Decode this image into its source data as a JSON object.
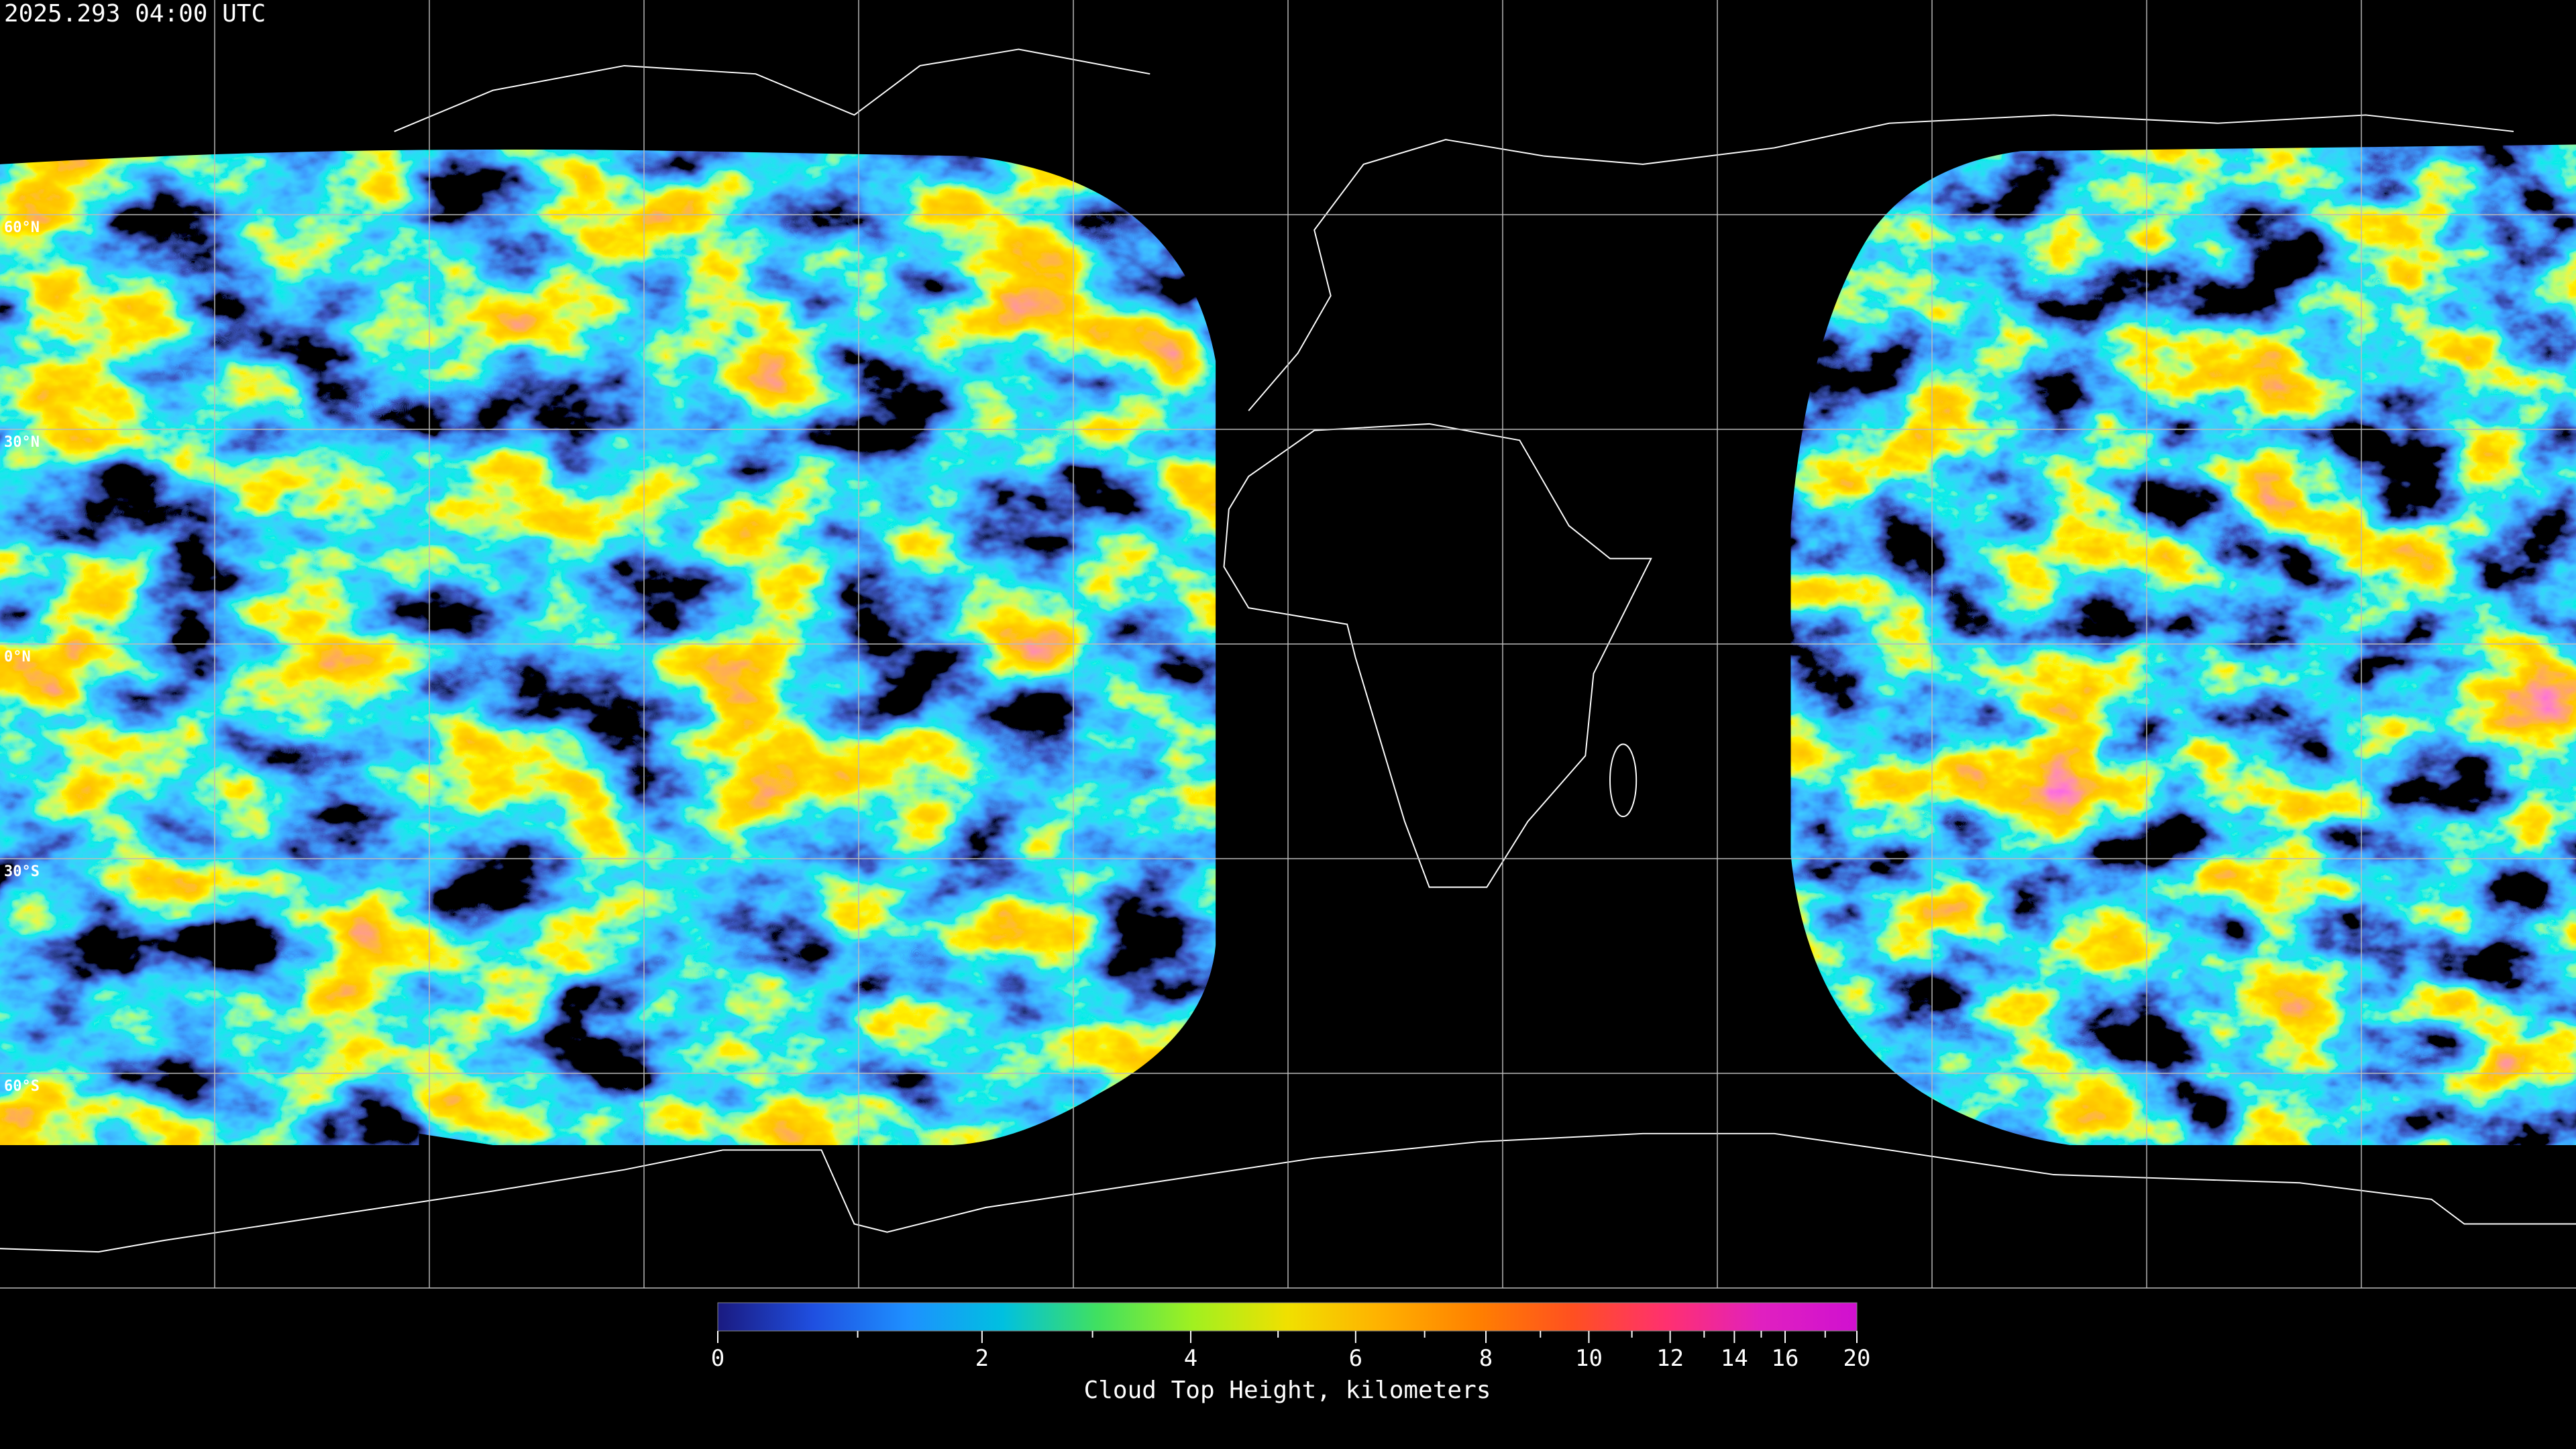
{
  "header": {
    "timestamp": "2025.293 04:00 UTC"
  },
  "map": {
    "lat_labels": [
      "60°N",
      "30°N",
      "0°N",
      "30°S",
      "60°S"
    ]
  },
  "chart_data": {
    "type": "colorbar",
    "xlabel": "Cloud Top Height, kilometers",
    "xlim": [
      0,
      20
    ],
    "xticks": [
      0,
      2,
      4,
      6,
      8,
      10,
      12,
      14,
      16,
      20
    ],
    "xticks_minor": [
      1,
      3,
      5,
      7,
      9,
      11,
      13,
      15,
      18
    ],
    "colors": [
      "#1a1a80",
      "#1f4fe0",
      "#1e90ff",
      "#00c0e0",
      "#40e060",
      "#a0f020",
      "#f0e000",
      "#ffb000",
      "#ff8000",
      "#ff5020",
      "#ff3070",
      "#e020c0",
      "#d010d0"
    ]
  }
}
